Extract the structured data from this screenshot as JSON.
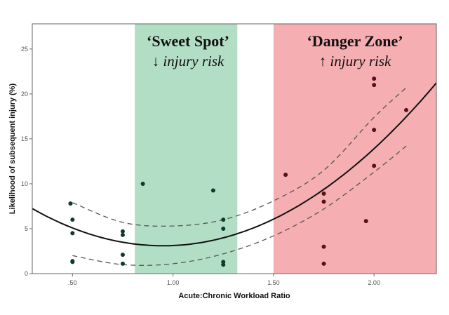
{
  "chart_data": {
    "type": "scatter",
    "title": "",
    "xlabel": "Acute:Chronic Workload Ratio",
    "ylabel": "Likelihood of subsequent injury (%)",
    "xlim": [
      0.3,
      2.31
    ],
    "ylim": [
      0,
      27.8
    ],
    "xticks": [
      {
        "value": 0.5,
        "label": ".50"
      },
      {
        "value": 1.0,
        "label": "1.00"
      },
      {
        "value": 1.5,
        "label": "1.50"
      },
      {
        "value": 2.0,
        "label": "2.00"
      }
    ],
    "yticks": [
      {
        "value": 0,
        "label": "0"
      },
      {
        "value": 5,
        "label": "5"
      },
      {
        "value": 10,
        "label": "10"
      },
      {
        "value": 15,
        "label": "15"
      },
      {
        "value": 20,
        "label": "20"
      },
      {
        "value": 25,
        "label": "25"
      }
    ],
    "grid": false,
    "zones": [
      {
        "name": "sweet-spot",
        "x": [
          0.81,
          1.32
        ],
        "color": "#b3dec6",
        "title": "‘Sweet Spot’",
        "arrow": "↓",
        "subtitle": "injury risk"
      },
      {
        "name": "danger-zone",
        "x": [
          1.5,
          2.31
        ],
        "color": "#f5aeb1",
        "title": "‘Danger Zone’",
        "arrow": "↑",
        "subtitle": "injury risk"
      }
    ],
    "points": [
      [
        0.49,
        7.8
      ],
      [
        0.5,
        6.0
      ],
      [
        0.5,
        4.5
      ],
      [
        0.5,
        1.4
      ],
      [
        0.5,
        1.3
      ],
      [
        0.75,
        4.7
      ],
      [
        0.75,
        4.3
      ],
      [
        0.75,
        2.1
      ],
      [
        0.75,
        1.1
      ],
      [
        0.85,
        10.0
      ],
      [
        1.2,
        9.25
      ],
      [
        1.25,
        6.0
      ],
      [
        1.25,
        5.0
      ],
      [
        1.25,
        1.3
      ],
      [
        1.25,
        1.0
      ],
      [
        1.56,
        11.0
      ],
      [
        1.75,
        8.9
      ],
      [
        1.75,
        8.0
      ],
      [
        1.75,
        3.0
      ],
      [
        1.75,
        1.1
      ],
      [
        1.96,
        5.85
      ],
      [
        2.0,
        21.7
      ],
      [
        2.0,
        21.0
      ],
      [
        2.0,
        16.0
      ],
      [
        2.0,
        12.0
      ],
      [
        2.16,
        18.2
      ]
    ],
    "fit": {
      "type": "quadratic",
      "vertex_x": 0.95,
      "vertex_y": 3.1,
      "curvature": 9.8
    },
    "ci_upper": [
      [
        0.5,
        7.9
      ],
      [
        0.75,
        5.7
      ],
      [
        1.0,
        5.3
      ],
      [
        1.25,
        6.0
      ],
      [
        1.5,
        8.1
      ],
      [
        1.75,
        11.5
      ],
      [
        2.0,
        17.4
      ],
      [
        2.16,
        20.7
      ]
    ],
    "ci_lower": [
      [
        0.5,
        2.0
      ],
      [
        0.75,
        1.0
      ],
      [
        1.0,
        1.1
      ],
      [
        1.25,
        2.2
      ],
      [
        1.5,
        4.2
      ],
      [
        1.75,
        7.2
      ],
      [
        2.0,
        11.3
      ],
      [
        2.16,
        14.2
      ]
    ],
    "colors": {
      "point_dark": "#0f3b2e",
      "point_danger": "#5a0f1c",
      "fit": "#111111",
      "ci": "#555555"
    }
  }
}
